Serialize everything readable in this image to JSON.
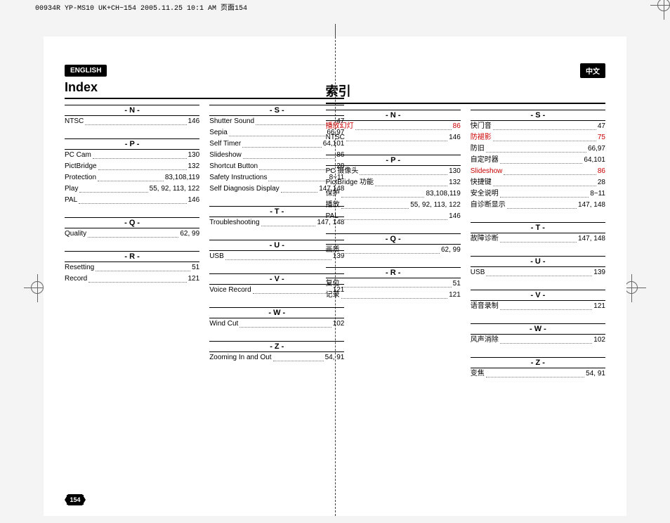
{
  "header_stamp": "00934R YP-MS10 UK+CH~154  2005.11.25 10:1 AM  页面154",
  "page_number": "154",
  "center_bar": "|",
  "left": {
    "badge": "ENGLISH",
    "title": "Index",
    "col1": [
      {
        "h": "- N -",
        "rows": [
          {
            "t": "NTSC",
            "p": "146"
          }
        ]
      },
      {
        "h": "- P -",
        "rows": [
          {
            "t": "PC Cam",
            "p": "130"
          },
          {
            "t": "PictBridge",
            "p": "132"
          },
          {
            "t": "Protection",
            "p": "83,108,119"
          },
          {
            "t": "Play",
            "p": "55, 92, 113, 122"
          },
          {
            "t": "PAL",
            "p": "146"
          }
        ]
      },
      {
        "h": "- Q -",
        "rows": [
          {
            "t": "Quality",
            "p": "62, 99"
          }
        ]
      },
      {
        "h": "- R -",
        "rows": [
          {
            "t": "Resetting",
            "p": "51"
          },
          {
            "t": "Record",
            "p": "121"
          }
        ]
      }
    ],
    "col2": [
      {
        "h": "- S -",
        "rows": [
          {
            "t": "Shutter Sound",
            "p": "47"
          },
          {
            "t": "Sepia",
            "p": "66,97"
          },
          {
            "t": "Self Timer",
            "p": "64,101"
          },
          {
            "t": "Slideshow",
            "p": "86"
          },
          {
            "t": "Shortcut Button",
            "p": "28"
          },
          {
            "t": "Safety Instructions",
            "p": "8~11"
          },
          {
            "t": "Self Diagnosis Display",
            "p": "147,148"
          }
        ]
      },
      {
        "h": "- T -",
        "rows": [
          {
            "t": "Troubleshooting",
            "p": "147, 148"
          }
        ]
      },
      {
        "h": "- U -",
        "rows": [
          {
            "t": "USB",
            "p": "139"
          }
        ]
      },
      {
        "h": "- V -",
        "rows": [
          {
            "t": "Voice Record",
            "p": "121"
          }
        ]
      },
      {
        "h": "- W -",
        "rows": [
          {
            "t": "Wind Cut",
            "p": "102"
          }
        ]
      },
      {
        "h": "- Z -",
        "rows": [
          {
            "t": "Zooming In and Out",
            "p": "54, 91"
          }
        ]
      }
    ]
  },
  "right": {
    "badge": "中文",
    "title": "索引",
    "col1": [
      {
        "h": "- N -",
        "rows": [
          {
            "t": "播放幻灯",
            "p": "86",
            "red": true
          },
          {
            "t": "NTSC",
            "p": "146"
          }
        ]
      },
      {
        "h": "- P -",
        "rows": [
          {
            "t": "PC 摄像头",
            "p": "130"
          },
          {
            "t": "PictBridge 功能",
            "p": "132"
          },
          {
            "t": "保护",
            "p": "83,108,119"
          },
          {
            "t": "播放",
            "p": "55, 92, 113, 122"
          },
          {
            "t": "PAL",
            "p": "146"
          }
        ]
      },
      {
        "h": "- Q -",
        "rows": [
          {
            "t": "画质",
            "p": "62, 99"
          }
        ]
      },
      {
        "h": "- R -",
        "rows": [
          {
            "t": "复位",
            "p": "51"
          },
          {
            "t": "记录",
            "p": "121"
          }
        ]
      }
    ],
    "col2": [
      {
        "h": "- S -",
        "rows": [
          {
            "t": "快门音",
            "p": "47"
          },
          {
            "t": "防褪影",
            "p": "75",
            "red": true
          },
          {
            "t": "防旧",
            "p": "66,97"
          },
          {
            "t": "自定时器",
            "p": "64,101"
          },
          {
            "t": "Slideshow",
            "p": "86",
            "red": true
          },
          {
            "t": "快捷键",
            "p": "28"
          },
          {
            "t": "安全说明",
            "p": "8~11"
          },
          {
            "t": "自诊断显示",
            "p": "147, 148"
          }
        ]
      },
      {
        "h": "- T -",
        "rows": [
          {
            "t": "故障诊断",
            "p": "147, 148"
          }
        ]
      },
      {
        "h": "- U -",
        "rows": [
          {
            "t": "USB",
            "p": "139"
          }
        ]
      },
      {
        "h": "- V -",
        "rows": [
          {
            "t": "语音录制",
            "p": "121"
          }
        ]
      },
      {
        "h": "- W -",
        "rows": [
          {
            "t": "风声消除",
            "p": "102"
          }
        ]
      },
      {
        "h": "- Z -",
        "rows": [
          {
            "t": "变焦",
            "p": "54, 91"
          }
        ]
      }
    ]
  }
}
